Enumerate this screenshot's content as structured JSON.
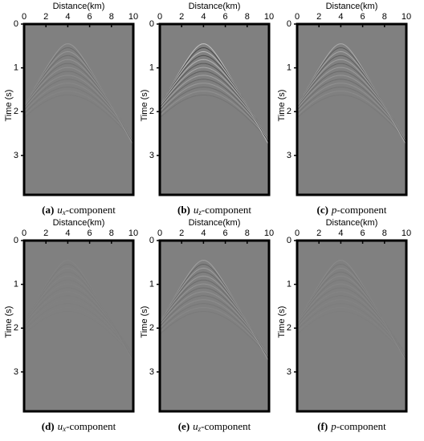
{
  "chart_data": [
    {
      "type": "seismic-image",
      "xlabel": "Distance(km)",
      "ylabel": "Time (s)",
      "xlim": [
        0,
        10
      ],
      "ylim": [
        0,
        3.9
      ],
      "xticks": [
        0,
        2,
        4,
        6,
        8,
        10
      ],
      "yticks": [
        0,
        1,
        2,
        3
      ],
      "caption": {
        "label": "(a)",
        "symbol": "u",
        "sub": "x",
        "suffix": "-component"
      }
    },
    {
      "type": "seismic-image",
      "xlabel": "Distance(km)",
      "ylabel": "Time (s)",
      "xlim": [
        0,
        10
      ],
      "ylim": [
        0,
        3.9
      ],
      "xticks": [
        0,
        2,
        4,
        6,
        8,
        10
      ],
      "yticks": [
        0,
        1,
        2,
        3
      ],
      "caption": {
        "label": "(b)",
        "symbol": "u",
        "sub": "z",
        "suffix": "-component"
      }
    },
    {
      "type": "seismic-image",
      "xlabel": "Distance(km)",
      "ylabel": "Time (s)",
      "xlim": [
        0,
        10
      ],
      "ylim": [
        0,
        3.9
      ],
      "xticks": [
        0,
        2,
        4,
        6,
        8,
        10
      ],
      "yticks": [
        0,
        1,
        2,
        3
      ],
      "caption": {
        "label": "(c)",
        "symbol": "p",
        "suffix": "-component"
      }
    },
    {
      "type": "seismic-image",
      "xlabel": "Distance(km)",
      "ylabel": "Time (s)",
      "xlim": [
        0,
        10
      ],
      "ylim": [
        0,
        3.9
      ],
      "xticks": [
        0,
        2,
        4,
        6,
        8,
        10
      ],
      "yticks": [
        0,
        1,
        2,
        3
      ],
      "caption": {
        "label": "(d)",
        "symbol": "u",
        "sub": "x",
        "suffix": "-component"
      }
    },
    {
      "type": "seismic-image",
      "xlabel": "Distance(km)",
      "ylabel": "Time (s)",
      "xlim": [
        0,
        10
      ],
      "ylim": [
        0,
        3.9
      ],
      "xticks": [
        0,
        2,
        4,
        6,
        8,
        10
      ],
      "yticks": [
        0,
        1,
        2,
        3
      ],
      "caption": {
        "label": "(e)",
        "symbol": "u",
        "sub": "z",
        "suffix": "-component"
      }
    },
    {
      "type": "seismic-image",
      "xlabel": "Distance(km)",
      "ylabel": "Time (s)",
      "xlim": [
        0,
        10
      ],
      "ylim": [
        0,
        3.9
      ],
      "xticks": [
        0,
        2,
        4,
        6,
        8,
        10
      ],
      "yticks": [
        0,
        1,
        2,
        3
      ],
      "caption": {
        "label": "(f)",
        "symbol": "p",
        "suffix": "-component"
      }
    }
  ]
}
